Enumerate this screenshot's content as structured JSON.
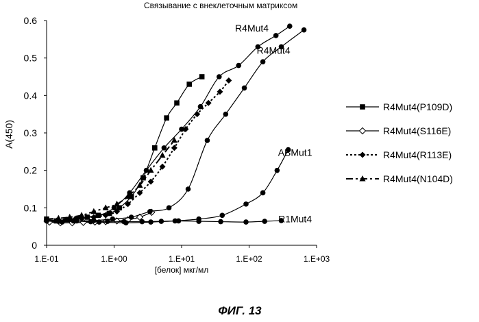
{
  "chart_data": {
    "type": "line",
    "title": "Связывание с внеклеточным матриксом",
    "xlabel": "[белок] мкг/мл",
    "ylabel": "A(450)",
    "xscale": "log",
    "xlim": [
      0.1,
      1000
    ],
    "ylim": [
      0,
      0.6
    ],
    "x_ticks": [
      "1.E-01",
      "1.E+00",
      "1.E+01",
      "1.E+02",
      "1.E+03"
    ],
    "y_ticks": [
      "0",
      "0.1",
      "0.2",
      "0.3",
      "0.4",
      "0.5",
      "0.6"
    ],
    "legend_position": "right",
    "series": [
      {
        "name": "R4Mut4(P109D)",
        "style": "solid",
        "marker": "square",
        "x": [
          0.1,
          0.14,
          0.2,
          0.28,
          0.4,
          0.58,
          0.85,
          1.2,
          1.8,
          2.7,
          4.0,
          6.0,
          8.5,
          13,
          20
        ],
        "y": [
          0.07,
          0.065,
          0.068,
          0.07,
          0.075,
          0.08,
          0.085,
          0.1,
          0.13,
          0.18,
          0.26,
          0.34,
          0.38,
          0.43,
          0.45
        ]
      },
      {
        "name": "R4Mut4(S116E)",
        "style": "solid",
        "marker": "open-diamond",
        "x": [
          0.11,
          0.16,
          0.24,
          0.35,
          0.52,
          0.75,
          1.1,
          1.6,
          2.4,
          3.6
        ],
        "y": [
          0.062,
          0.06,
          0.06,
          0.061,
          0.062,
          0.063,
          0.065,
          0.068,
          0.075,
          0.088
        ]
      },
      {
        "name": "R4Mut4(R113E)",
        "style": "dotted",
        "marker": "diamond",
        "x": [
          0.1,
          0.15,
          0.22,
          0.33,
          0.5,
          0.75,
          1.1,
          1.6,
          2.4,
          3.5,
          5.2,
          7.8,
          11.5,
          17,
          25,
          37,
          50
        ],
        "y": [
          0.065,
          0.068,
          0.07,
          0.072,
          0.075,
          0.08,
          0.09,
          0.11,
          0.14,
          0.17,
          0.21,
          0.26,
          0.31,
          0.35,
          0.38,
          0.41,
          0.44
        ]
      },
      {
        "name": "R4Mut4(N104D)",
        "style": "dashdot",
        "marker": "triangle",
        "x": [
          0.1,
          0.15,
          0.22,
          0.33,
          0.5,
          0.75,
          1.1,
          1.6,
          2.4,
          3.5,
          5.2,
          7.8
        ],
        "y": [
          0.07,
          0.072,
          0.075,
          0.08,
          0.09,
          0.1,
          0.11,
          0.13,
          0.16,
          0.2,
          0.24,
          0.28
        ]
      },
      {
        "name": "R4Mut4",
        "style": "solid",
        "marker": "circle",
        "x": [
          0.1,
          0.27,
          0.6,
          1.0,
          1.7,
          3.0,
          5.5,
          10,
          19,
          36,
          70,
          135,
          250,
          400
        ],
        "y": [
          0.065,
          0.07,
          0.08,
          0.1,
          0.14,
          0.2,
          0.26,
          0.31,
          0.37,
          0.45,
          0.48,
          0.53,
          0.56,
          0.585
        ]
      },
      {
        "name": "R4Mut4",
        "style": "solid",
        "marker": "circle",
        "x": [
          0.1,
          0.17,
          0.28,
          0.5,
          0.95,
          1.8,
          3.4,
          6.5,
          12.5,
          24,
          45,
          85,
          160,
          300,
          650
        ],
        "y": [
          0.065,
          0.062,
          0.065,
          0.066,
          0.07,
          0.075,
          0.09,
          0.1,
          0.15,
          0.28,
          0.35,
          0.42,
          0.49,
          0.53,
          0.575
        ]
      },
      {
        "name": "ABMut1",
        "style": "solid",
        "marker": "circle",
        "x": [
          0.1,
          0.25,
          0.6,
          1.5,
          3.5,
          8,
          18,
          40,
          90,
          160,
          260,
          380
        ],
        "y": [
          0.068,
          0.065,
          0.062,
          0.06,
          0.062,
          0.065,
          0.07,
          0.08,
          0.11,
          0.14,
          0.2,
          0.255
        ]
      },
      {
        "name": "R1Mut4",
        "style": "solid",
        "marker": "circle",
        "x": [
          0.1,
          0.15,
          0.25,
          0.45,
          0.8,
          1.4,
          2.6,
          5,
          9,
          18,
          38,
          90,
          170,
          300
        ],
        "y": [
          0.068,
          0.064,
          0.065,
          0.063,
          0.064,
          0.063,
          0.063,
          0.064,
          0.065,
          0.064,
          0.063,
          0.062,
          0.064,
          0.066
        ]
      }
    ],
    "annotations": [
      {
        "text": "R4Mut4",
        "at_x": 110,
        "at_y": 0.58
      },
      {
        "text": "R4Mut4",
        "at_x": 230,
        "at_y": 0.52
      },
      {
        "text": "ABMut1",
        "at_x": 480,
        "at_y": 0.248
      },
      {
        "text": "R1Mut4",
        "at_x": 480,
        "at_y": 0.07
      }
    ]
  },
  "caption": "ФИГ. 13"
}
